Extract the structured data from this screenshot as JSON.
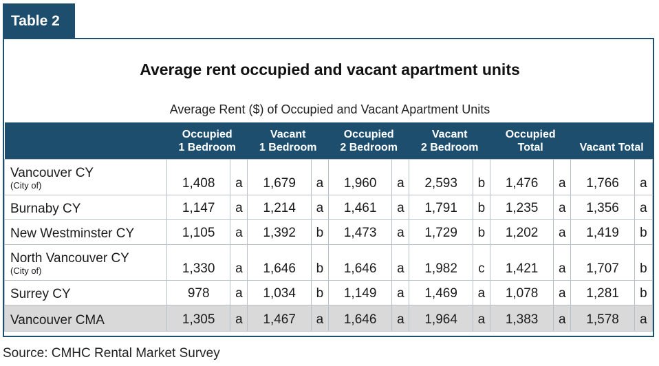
{
  "tab_label": "Table 2",
  "title": "Average rent occupied and vacant apartment units",
  "subtitle": "Average Rent ($) of Occupied and Vacant Apartment Units",
  "headers": [
    [
      "Occupied",
      "1 Bedroom"
    ],
    [
      "Vacant",
      "1 Bedroom"
    ],
    [
      "Occupied",
      "2 Bedroom"
    ],
    [
      "Vacant",
      "2 Bedroom"
    ],
    [
      "Occupied",
      "Total"
    ],
    [
      "",
      "Vacant Total"
    ]
  ],
  "rows": [
    {
      "name": "Vancouver CY",
      "sub": "(City of)",
      "cells": [
        [
          "1,408",
          "a"
        ],
        [
          "1,679",
          "a"
        ],
        [
          "1,960",
          "a"
        ],
        [
          "2,593",
          "b"
        ],
        [
          "1,476",
          "a"
        ],
        [
          "1,766",
          "a"
        ]
      ]
    },
    {
      "name": "Burnaby CY",
      "sub": "",
      "cells": [
        [
          "1,147",
          "a"
        ],
        [
          "1,214",
          "a"
        ],
        [
          "1,461",
          "a"
        ],
        [
          "1,791",
          "b"
        ],
        [
          "1,235",
          "a"
        ],
        [
          "1,356",
          "a"
        ]
      ]
    },
    {
      "name": "New Westminster CY",
      "sub": "",
      "cells": [
        [
          "1,105",
          "a"
        ],
        [
          "1,392",
          "b"
        ],
        [
          "1,473",
          "a"
        ],
        [
          "1,729",
          "b"
        ],
        [
          "1,202",
          "a"
        ],
        [
          "1,419",
          "b"
        ]
      ]
    },
    {
      "name": "North Vancouver CY",
      "sub": "(City of)",
      "cells": [
        [
          "1,330",
          "a"
        ],
        [
          "1,646",
          "b"
        ],
        [
          "1,646",
          "a"
        ],
        [
          "1,982",
          "c"
        ],
        [
          "1,421",
          "a"
        ],
        [
          "1,707",
          "b"
        ]
      ]
    },
    {
      "name": "Surrey CY",
      "sub": "",
      "cells": [
        [
          "978",
          "a"
        ],
        [
          "1,034",
          "b"
        ],
        [
          "1,149",
          "a"
        ],
        [
          "1,469",
          "a"
        ],
        [
          "1,078",
          "a"
        ],
        [
          "1,281",
          "b"
        ]
      ]
    },
    {
      "name": "Vancouver CMA",
      "sub": "",
      "cells": [
        [
          "1,305",
          "a"
        ],
        [
          "1,467",
          "a"
        ],
        [
          "1,646",
          "a"
        ],
        [
          "1,964",
          "a"
        ],
        [
          "1,383",
          "a"
        ],
        [
          "1,578",
          "a"
        ]
      ]
    }
  ],
  "source": "Source: CMHC Rental Market Survey",
  "colors": {
    "header_bg": "#1d4e6e",
    "total_row_bg": "#d9d9d9",
    "grid": "#b7c0c8"
  }
}
